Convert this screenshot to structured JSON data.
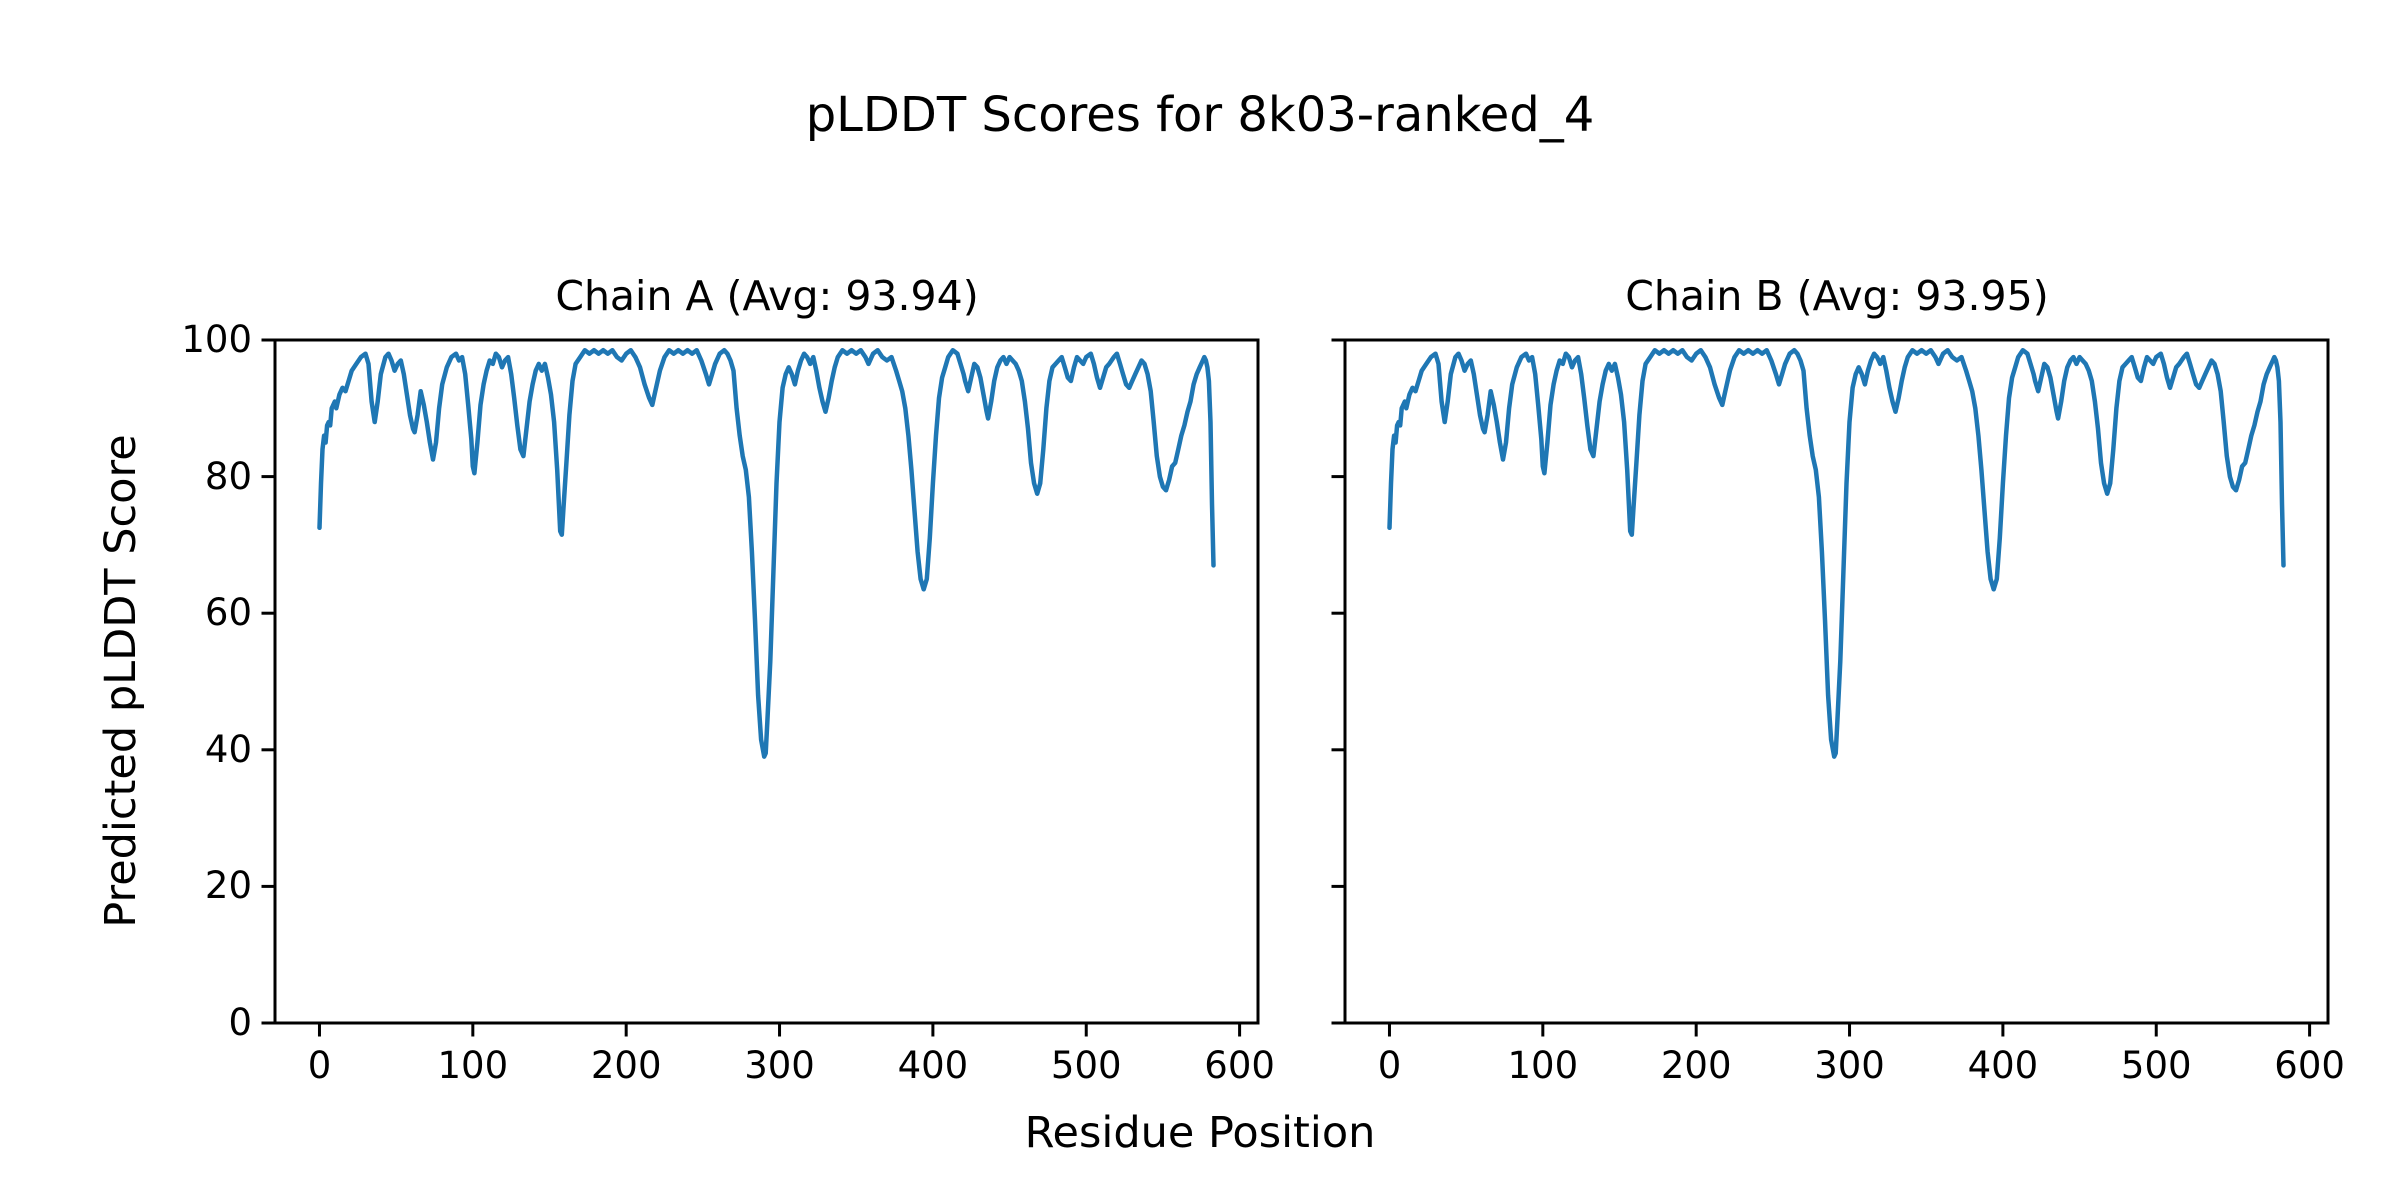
{
  "figure": {
    "background": "#ffffff",
    "text_color": "#000000"
  },
  "chart_data": {
    "type": "line",
    "title": "pLDDT Scores for 8k03-ranked_4",
    "xlabel": "Residue Position",
    "ylabel": "Predicted pLDDT Score",
    "xlim": [
      -29,
      612
    ],
    "ylim": [
      0,
      100
    ],
    "xticks": [
      0,
      100,
      200,
      300,
      400,
      500,
      600
    ],
    "yticks": [
      0,
      20,
      40,
      60,
      80,
      100
    ],
    "grid": false,
    "legend": "none",
    "line_color": "#1f77b4",
    "spine_color": "#000000",
    "panels": [
      {
        "label": "Chain A",
        "title": "Chain A (Avg: 93.94)",
        "avg": 93.94
      },
      {
        "label": "Chain B",
        "title": "Chain B (Avg: 93.95)",
        "avg": 93.95
      }
    ],
    "points": [
      [
        0,
        72.5
      ],
      [
        1,
        79
      ],
      [
        2,
        84
      ],
      [
        3,
        86
      ],
      [
        4,
        85
      ],
      [
        5,
        87.5
      ],
      [
        6,
        88
      ],
      [
        7,
        87.5
      ],
      [
        8,
        90
      ],
      [
        10,
        91
      ],
      [
        11,
        90
      ],
      [
        13,
        92
      ],
      [
        15,
        93
      ],
      [
        17,
        92.5
      ],
      [
        19,
        94
      ],
      [
        21,
        95.5
      ],
      [
        24,
        96.5
      ],
      [
        27,
        97.5
      ],
      [
        30,
        98
      ],
      [
        32,
        96.5
      ],
      [
        34,
        91
      ],
      [
        36,
        88
      ],
      [
        38,
        91
      ],
      [
        40,
        95
      ],
      [
        43,
        97.5
      ],
      [
        45,
        98
      ],
      [
        47,
        97
      ],
      [
        49,
        95.5
      ],
      [
        51,
        96.5
      ],
      [
        53,
        97
      ],
      [
        55,
        95
      ],
      [
        57,
        92
      ],
      [
        59,
        89
      ],
      [
        61,
        87
      ],
      [
        62,
        86.5
      ],
      [
        64,
        89
      ],
      [
        66,
        92.5
      ],
      [
        68,
        90.5
      ],
      [
        70,
        88
      ],
      [
        72,
        85
      ],
      [
        74,
        82.5
      ],
      [
        76,
        85
      ],
      [
        78,
        90
      ],
      [
        80,
        93.5
      ],
      [
        83,
        96
      ],
      [
        86,
        97.5
      ],
      [
        89,
        98
      ],
      [
        91,
        97
      ],
      [
        93,
        97.5
      ],
      [
        95,
        95
      ],
      [
        97,
        90.5
      ],
      [
        99,
        85.5
      ],
      [
        100,
        81.5
      ],
      [
        101,
        80.5
      ],
      [
        103,
        85
      ],
      [
        105,
        90.5
      ],
      [
        107,
        93.5
      ],
      [
        109,
        95.5
      ],
      [
        111,
        97
      ],
      [
        113,
        96.5
      ],
      [
        115,
        98
      ],
      [
        117,
        97.5
      ],
      [
        119,
        96
      ],
      [
        121,
        97
      ],
      [
        123,
        97.5
      ],
      [
        125,
        95
      ],
      [
        127,
        91.5
      ],
      [
        129,
        87.5
      ],
      [
        131,
        84
      ],
      [
        133,
        83
      ],
      [
        135,
        87
      ],
      [
        137,
        91
      ],
      [
        139,
        93.5
      ],
      [
        141,
        95.5
      ],
      [
        143,
        96.5
      ],
      [
        145,
        95.5
      ],
      [
        147,
        96.5
      ],
      [
        149,
        94.5
      ],
      [
        151,
        92
      ],
      [
        153,
        88
      ],
      [
        155,
        81
      ],
      [
        157,
        72
      ],
      [
        158,
        71.5
      ],
      [
        159,
        75
      ],
      [
        161,
        82
      ],
      [
        163,
        89
      ],
      [
        165,
        94
      ],
      [
        167,
        96.5
      ],
      [
        170,
        97.5
      ],
      [
        173,
        98.5
      ],
      [
        176,
        98
      ],
      [
        179,
        98.5
      ],
      [
        182,
        98
      ],
      [
        185,
        98.5
      ],
      [
        188,
        98
      ],
      [
        191,
        98.5
      ],
      [
        194,
        97.5
      ],
      [
        197,
        97
      ],
      [
        200,
        98
      ],
      [
        203,
        98.5
      ],
      [
        206,
        97.5
      ],
      [
        209,
        96
      ],
      [
        212,
        93.5
      ],
      [
        215,
        91.5
      ],
      [
        217,
        90.5
      ],
      [
        219,
        92.5
      ],
      [
        222,
        95.5
      ],
      [
        225,
        97.5
      ],
      [
        228,
        98.5
      ],
      [
        231,
        98
      ],
      [
        234,
        98.5
      ],
      [
        237,
        98
      ],
      [
        240,
        98.5
      ],
      [
        243,
        98
      ],
      [
        246,
        98.5
      ],
      [
        249,
        97
      ],
      [
        252,
        95
      ],
      [
        254,
        93.5
      ],
      [
        256,
        95
      ],
      [
        258,
        96.5
      ],
      [
        261,
        98
      ],
      [
        264,
        98.5
      ],
      [
        266,
        98
      ],
      [
        268,
        97
      ],
      [
        270,
        95.5
      ],
      [
        272,
        90
      ],
      [
        274,
        86
      ],
      [
        276,
        83
      ],
      [
        278,
        81
      ],
      [
        280,
        77
      ],
      [
        282,
        69
      ],
      [
        284,
        59
      ],
      [
        286,
        48
      ],
      [
        288,
        41.5
      ],
      [
        290,
        39
      ],
      [
        291,
        39.5
      ],
      [
        292,
        44
      ],
      [
        294,
        53
      ],
      [
        296,
        66
      ],
      [
        298,
        79
      ],
      [
        300,
        88
      ],
      [
        302,
        93
      ],
      [
        304,
        95
      ],
      [
        306,
        96
      ],
      [
        308,
        95
      ],
      [
        310,
        93.5
      ],
      [
        312,
        95.5
      ],
      [
        314,
        97
      ],
      [
        316,
        98
      ],
      [
        318,
        97.5
      ],
      [
        320,
        96.5
      ],
      [
        322,
        97.5
      ],
      [
        324,
        95.5
      ],
      [
        326,
        93
      ],
      [
        328,
        91
      ],
      [
        330,
        89.5
      ],
      [
        332,
        91.5
      ],
      [
        334,
        94
      ],
      [
        336,
        96
      ],
      [
        338,
        97.5
      ],
      [
        341,
        98.5
      ],
      [
        344,
        98
      ],
      [
        347,
        98.5
      ],
      [
        350,
        98
      ],
      [
        353,
        98.5
      ],
      [
        356,
        97.5
      ],
      [
        358,
        96.5
      ],
      [
        361,
        98
      ],
      [
        364,
        98.5
      ],
      [
        367,
        97.5
      ],
      [
        370,
        97
      ],
      [
        373,
        97.5
      ],
      [
        376,
        95.5
      ],
      [
        378,
        94
      ],
      [
        380,
        92.5
      ],
      [
        382,
        90
      ],
      [
        384,
        86
      ],
      [
        386,
        81
      ],
      [
        388,
        75
      ],
      [
        390,
        69
      ],
      [
        392,
        65
      ],
      [
        394,
        63.5
      ],
      [
        396,
        65
      ],
      [
        398,
        71
      ],
      [
        400,
        79
      ],
      [
        402,
        86
      ],
      [
        404,
        91.5
      ],
      [
        406,
        94.5
      ],
      [
        408,
        96
      ],
      [
        410,
        97.5
      ],
      [
        413,
        98.5
      ],
      [
        416,
        98
      ],
      [
        418,
        96.5
      ],
      [
        420,
        95
      ],
      [
        421,
        94
      ],
      [
        423,
        92.5
      ],
      [
        425,
        94.5
      ],
      [
        427,
        96.5
      ],
      [
        429,
        96
      ],
      [
        431,
        94.5
      ],
      [
        433,
        92
      ],
      [
        435,
        89.5
      ],
      [
        436,
        88.5
      ],
      [
        438,
        91
      ],
      [
        440,
        94
      ],
      [
        442,
        96
      ],
      [
        444,
        97
      ],
      [
        446,
        97.5
      ],
      [
        448,
        96.5
      ],
      [
        450,
        97.5
      ],
      [
        452,
        97
      ],
      [
        454,
        96.5
      ],
      [
        456,
        95.5
      ],
      [
        458,
        94
      ],
      [
        460,
        91
      ],
      [
        462,
        87
      ],
      [
        464,
        82
      ],
      [
        466,
        79
      ],
      [
        468,
        77.5
      ],
      [
        470,
        79
      ],
      [
        472,
        84
      ],
      [
        474,
        90
      ],
      [
        476,
        94
      ],
      [
        478,
        96
      ],
      [
        480,
        96.5
      ],
      [
        482,
        97
      ],
      [
        484,
        97.5
      ],
      [
        486,
        96
      ],
      [
        488,
        94.5
      ],
      [
        490,
        94
      ],
      [
        492,
        96
      ],
      [
        494,
        97.5
      ],
      [
        496,
        97
      ],
      [
        498,
        96.5
      ],
      [
        500,
        97.5
      ],
      [
        503,
        98
      ],
      [
        505,
        96.5
      ],
      [
        507,
        94.5
      ],
      [
        509,
        93
      ],
      [
        511,
        94.5
      ],
      [
        513,
        96
      ],
      [
        515,
        96.5
      ],
      [
        518,
        97.5
      ],
      [
        520,
        98
      ],
      [
        522,
        96.5
      ],
      [
        524,
        95
      ],
      [
        526,
        93.5
      ],
      [
        528,
        93
      ],
      [
        530,
        94
      ],
      [
        532,
        95
      ],
      [
        534,
        96
      ],
      [
        536,
        97
      ],
      [
        538,
        96.5
      ],
      [
        540,
        95
      ],
      [
        542,
        92.5
      ],
      [
        544,
        88
      ],
      [
        546,
        83
      ],
      [
        548,
        80
      ],
      [
        550,
        78.5
      ],
      [
        552,
        78
      ],
      [
        554,
        79.5
      ],
      [
        556,
        81.5
      ],
      [
        558,
        82
      ],
      [
        560,
        84
      ],
      [
        562,
        86
      ],
      [
        564,
        87.5
      ],
      [
        566,
        89.5
      ],
      [
        568,
        91
      ],
      [
        570,
        93.5
      ],
      [
        572,
        95
      ],
      [
        574,
        96
      ],
      [
        576,
        97
      ],
      [
        577,
        97.5
      ],
      [
        578,
        97
      ],
      [
        579,
        96
      ],
      [
        580,
        94
      ],
      [
        581,
        88
      ],
      [
        582,
        76
      ],
      [
        583,
        67
      ]
    ]
  }
}
